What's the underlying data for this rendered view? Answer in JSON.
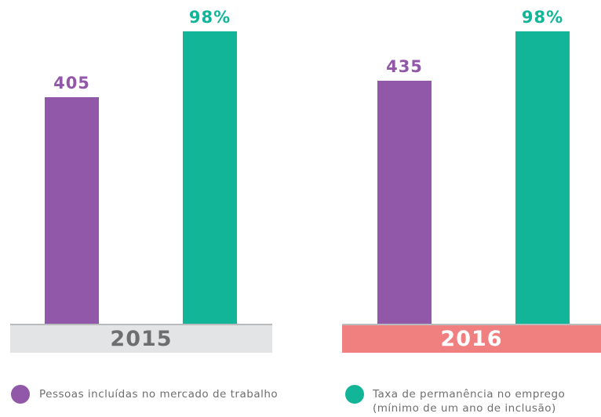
{
  "chart_data": {
    "type": "bar",
    "categories": [
      "2015",
      "2016"
    ],
    "category_colors": [
      "#e3e4e5",
      "#f07f80"
    ],
    "category_text_colors": [
      "#6d6e70",
      "#ffffff"
    ],
    "series": [
      {
        "name": "Pessoas incluídas no mercado de trabalho",
        "color": "#9157a8",
        "values": [
          405,
          435
        ]
      },
      {
        "name": "Taxa de permanência no emprego (mínimo de um ano de inclusão)",
        "color": "#12b597",
        "axis": "y2",
        "values": [
          98,
          98
        ],
        "value_labels": [
          "98%",
          "98%"
        ]
      }
    ]
  }
}
